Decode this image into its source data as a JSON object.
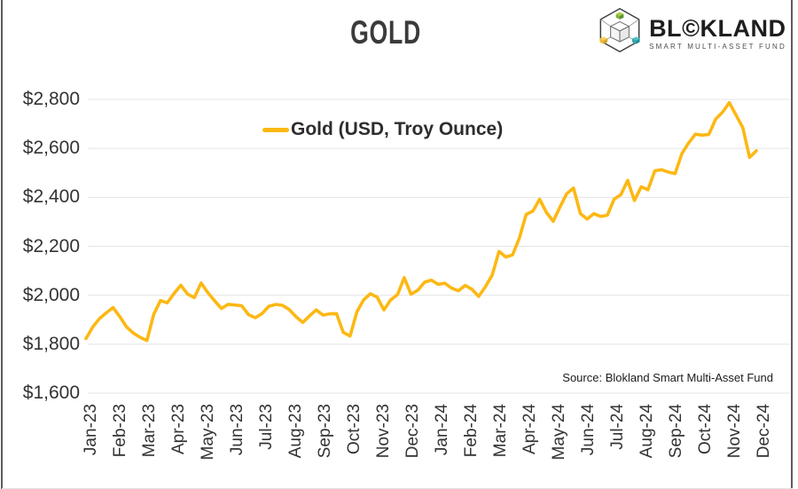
{
  "header": {
    "title": "GOLD",
    "logo": {
      "brand_pre": "BL",
      "brand_copyright": "©",
      "brand_post": "KLAND",
      "tagline": "SMART MULTI-ASSET FUND"
    }
  },
  "legend": {
    "label": "Gold (USD, Troy Ounce)"
  },
  "source": "Source: Blokland Smart Multi-Asset Fund",
  "colors": {
    "line": "#FCB813",
    "grid": "#E4E4E4",
    "axis_text": "#333333",
    "title_text": "#3B3B3B",
    "logo_green_top": "#A6CE39",
    "logo_green_left": "#7CB342",
    "logo_green_right": "#5B9130",
    "logo_yellow_top": "#F7D154",
    "logo_yellow_left": "#EDB92E",
    "logo_yellow_right": "#D9A32A",
    "logo_teal_top": "#4DC6C9",
    "logo_teal_left": "#2FA8AD",
    "logo_teal_right": "#1E8F94"
  },
  "chart_data": {
    "type": "line",
    "title": "GOLD",
    "xlabel": "",
    "ylabel": "",
    "ylim": [
      1600,
      2800
    ],
    "grid": "horizontal",
    "legend_position": "top-center",
    "y_tick_values": [
      1600,
      1800,
      2000,
      2200,
      2400,
      2600,
      2800
    ],
    "y_tick_labels": [
      "$1,600",
      "$1,800",
      "$2,000",
      "$2,200",
      "$2,400",
      "$2,600",
      "$2,800"
    ],
    "x_tick_labels": [
      "Jan-23",
      "Feb-23",
      "Mar-23",
      "Apr-23",
      "May-23",
      "Jun-23",
      "Jul-23",
      "Aug-23",
      "Sep-23",
      "Oct-23",
      "Nov-23",
      "Dec-23",
      "Jan-24",
      "Feb-24",
      "Mar-24",
      "Apr-24",
      "May-24",
      "Jun-24",
      "Jul-24",
      "Aug-24",
      "Sep-24",
      "Oct-24",
      "Nov-24",
      "Dec-24"
    ],
    "series": [
      {
        "name": "Gold (USD, Troy Ounce)",
        "color": "#FCB813",
        "cadence": "approx-weekly from Jan-2023 to late Nov-2024",
        "values": [
          1823,
          1870,
          1905,
          1928,
          1950,
          1912,
          1870,
          1845,
          1828,
          1815,
          1922,
          1978,
          1969,
          2007,
          2041,
          2005,
          1990,
          2050,
          2010,
          1977,
          1946,
          1963,
          1960,
          1957,
          1921,
          1908,
          1925,
          1955,
          1962,
          1959,
          1942,
          1913,
          1889,
          1915,
          1940,
          1919,
          1924,
          1925,
          1848,
          1833,
          1932,
          1981,
          2006,
          1992,
          1940,
          1981,
          2002,
          2072,
          2004,
          2020,
          2053,
          2062,
          2045,
          2049,
          2029,
          2018,
          2040,
          2024,
          1995,
          2035,
          2083,
          2179,
          2156,
          2165,
          2233,
          2330,
          2344,
          2392,
          2338,
          2302,
          2360,
          2415,
          2438,
          2334,
          2311,
          2333,
          2322,
          2327,
          2392,
          2411,
          2469,
          2387,
          2443,
          2431,
          2508,
          2513,
          2503,
          2497,
          2578,
          2622,
          2658,
          2654,
          2657,
          2720,
          2747,
          2787,
          2736,
          2685,
          2563,
          2590
        ]
      }
    ],
    "source": "Source: Blokland Smart Multi-Asset Fund"
  }
}
